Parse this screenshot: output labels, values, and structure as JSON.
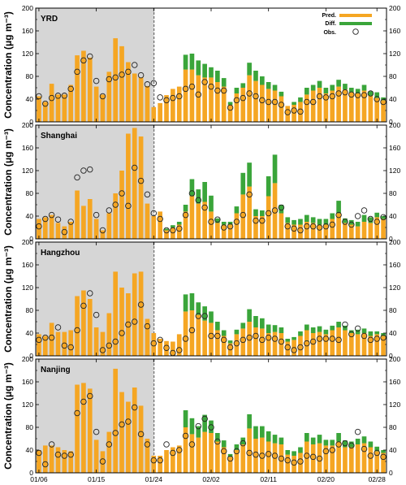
{
  "colors": {
    "pred": "#f5a623",
    "diff": "#3aa53a",
    "obs_edge": "#222222",
    "shade": "#d6d6d6"
  },
  "legend": {
    "pred": "Pred.",
    "diff": "Diff.",
    "obs": "Obs."
  },
  "y_axis_label": "Concentration (μg m⁻³)",
  "x_tick_labels": [
    "01/06",
    "01/15",
    "01/24",
    "02/02",
    "02/11",
    "02/20",
    "02/28"
  ],
  "chart_data": [
    {
      "type": "bar",
      "title": "YRD",
      "ylim": [
        0,
        200
      ],
      "yticks": [
        0,
        40,
        80,
        120,
        160,
        200
      ],
      "pred": [
        45,
        35,
        67,
        48,
        48,
        65,
        117,
        125,
        113,
        62,
        48,
        88,
        147,
        133,
        105,
        85,
        78,
        63,
        26,
        33,
        47,
        58,
        62,
        92,
        92,
        82,
        78,
        78,
        70,
        62,
        30,
        50,
        60,
        82,
        72,
        65,
        58,
        55,
        45,
        28,
        30,
        35,
        48,
        55,
        60,
        50,
        55,
        62,
        57,
        52,
        50,
        55,
        46,
        42,
        38
      ],
      "diff": [
        0,
        0,
        0,
        0,
        0,
        0,
        0,
        0,
        0,
        0,
        0,
        0,
        0,
        0,
        0,
        0,
        0,
        0,
        0,
        0,
        0,
        0,
        0,
        26,
        28,
        26,
        24,
        18,
        20,
        15,
        5,
        10,
        8,
        22,
        18,
        15,
        12,
        10,
        8,
        0,
        5,
        8,
        12,
        10,
        12,
        10,
        10,
        12,
        10,
        8,
        8,
        10,
        8,
        10,
        5
      ],
      "obs": [
        45,
        32,
        42,
        46,
        46,
        58,
        88,
        108,
        115,
        72,
        45,
        75,
        78,
        83,
        88,
        100,
        82,
        66,
        68,
        43,
        38,
        42,
        45,
        58,
        62,
        48,
        70,
        62,
        55,
        55,
        25,
        38,
        42,
        50,
        45,
        38,
        35,
        35,
        30,
        17,
        20,
        18,
        35,
        35,
        45,
        43,
        45,
        50,
        52,
        48,
        47,
        47,
        50,
        40,
        35
      ]
    },
    {
      "type": "bar",
      "title": "Shanghai",
      "ylim": [
        0,
        200
      ],
      "yticks": [
        0,
        40,
        80,
        120,
        160,
        200
      ],
      "pred": [
        35,
        38,
        42,
        28,
        22,
        30,
        85,
        58,
        70,
        35,
        15,
        45,
        80,
        120,
        185,
        195,
        180,
        62,
        40,
        48,
        15,
        20,
        25,
        48,
        75,
        62,
        65,
        48,
        28,
        25,
        25,
        45,
        78,
        92,
        40,
        40,
        75,
        98,
        45,
        28,
        25,
        25,
        30,
        28,
        25,
        25,
        35,
        45,
        28,
        25,
        22,
        30,
        28,
        38,
        35
      ],
      "diff": [
        0,
        0,
        0,
        0,
        0,
        0,
        0,
        0,
        0,
        0,
        0,
        0,
        0,
        0,
        0,
        0,
        0,
        0,
        0,
        0,
        3,
        4,
        5,
        12,
        30,
        25,
        35,
        28,
        8,
        5,
        5,
        12,
        38,
        42,
        12,
        10,
        35,
        50,
        15,
        10,
        8,
        10,
        12,
        10,
        10,
        10,
        10,
        22,
        8,
        8,
        8,
        12,
        10,
        8,
        5
      ],
      "obs": [
        22,
        35,
        42,
        34,
        12,
        30,
        108,
        120,
        122,
        42,
        15,
        50,
        60,
        80,
        58,
        125,
        102,
        78,
        45,
        35,
        15,
        15,
        18,
        42,
        80,
        68,
        55,
        30,
        34,
        20,
        22,
        30,
        42,
        78,
        32,
        32,
        45,
        50,
        55,
        22,
        18,
        15,
        22,
        22,
        20,
        22,
        25,
        42,
        30,
        25,
        40,
        50,
        35,
        30,
        38
      ]
    },
    {
      "type": "bar",
      "title": "Hangzhou",
      "ylim": [
        0,
        200
      ],
      "yticks": [
        0,
        40,
        80,
        120,
        160,
        200
      ],
      "pred": [
        38,
        35,
        58,
        42,
        42,
        45,
        105,
        115,
        100,
        50,
        42,
        75,
        148,
        120,
        110,
        145,
        148,
        65,
        40,
        30,
        26,
        25,
        38,
        78,
        80,
        72,
        62,
        58,
        45,
        35,
        22,
        38,
        48,
        60,
        50,
        48,
        40,
        42,
        40,
        25,
        28,
        35,
        45,
        40,
        42,
        38,
        45,
        50,
        45,
        40,
        38,
        40,
        35,
        38,
        35
      ],
      "diff": [
        0,
        0,
        0,
        0,
        0,
        0,
        0,
        0,
        0,
        0,
        0,
        0,
        0,
        0,
        0,
        0,
        0,
        0,
        0,
        0,
        0,
        0,
        0,
        30,
        30,
        22,
        25,
        20,
        15,
        10,
        5,
        8,
        10,
        22,
        20,
        18,
        15,
        12,
        10,
        5,
        5,
        8,
        10,
        10,
        10,
        8,
        8,
        10,
        8,
        5,
        8,
        8,
        8,
        5,
        5
      ],
      "obs": [
        28,
        32,
        32,
        50,
        18,
        15,
        45,
        88,
        110,
        72,
        10,
        18,
        25,
        40,
        55,
        60,
        90,
        52,
        22,
        28,
        14,
        5,
        10,
        30,
        45,
        70,
        70,
        35,
        35,
        28,
        15,
        22,
        28,
        32,
        35,
        28,
        32,
        30,
        25,
        15,
        10,
        15,
        22,
        25,
        30,
        30,
        30,
        28,
        55,
        38,
        48,
        35,
        28,
        30,
        32
      ]
    },
    {
      "type": "bar",
      "title": "Nanjing",
      "ylim": [
        0,
        200
      ],
      "yticks": [
        0,
        40,
        80,
        120,
        160,
        200
      ],
      "pred": [
        40,
        48,
        48,
        45,
        40,
        38,
        155,
        158,
        148,
        58,
        38,
        72,
        183,
        142,
        125,
        150,
        118,
        60,
        30,
        30,
        40,
        45,
        48,
        80,
        68,
        62,
        72,
        70,
        55,
        45,
        28,
        40,
        50,
        78,
        60,
        62,
        55,
        52,
        50,
        32,
        30,
        35,
        55,
        50,
        52,
        48,
        48,
        55,
        45,
        45,
        50,
        52,
        45,
        38,
        35
      ],
      "diff": [
        0,
        0,
        0,
        0,
        0,
        0,
        0,
        0,
        0,
        0,
        0,
        0,
        0,
        0,
        0,
        0,
        0,
        0,
        0,
        0,
        0,
        0,
        0,
        30,
        28,
        20,
        30,
        22,
        15,
        12,
        5,
        10,
        12,
        25,
        22,
        20,
        18,
        15,
        12,
        8,
        8,
        10,
        15,
        12,
        15,
        10,
        10,
        15,
        12,
        10,
        10,
        12,
        10,
        8,
        5
      ],
      "obs": [
        35,
        15,
        50,
        32,
        30,
        32,
        105,
        125,
        135,
        72,
        20,
        50,
        70,
        85,
        90,
        115,
        68,
        50,
        22,
        22,
        50,
        35,
        40,
        65,
        50,
        82,
        95,
        80,
        55,
        38,
        25,
        38,
        52,
        35,
        32,
        30,
        33,
        30,
        25,
        22,
        18,
        20,
        30,
        28,
        25,
        38,
        40,
        50,
        52,
        48,
        72,
        42,
        30,
        35,
        28
      ]
    }
  ]
}
